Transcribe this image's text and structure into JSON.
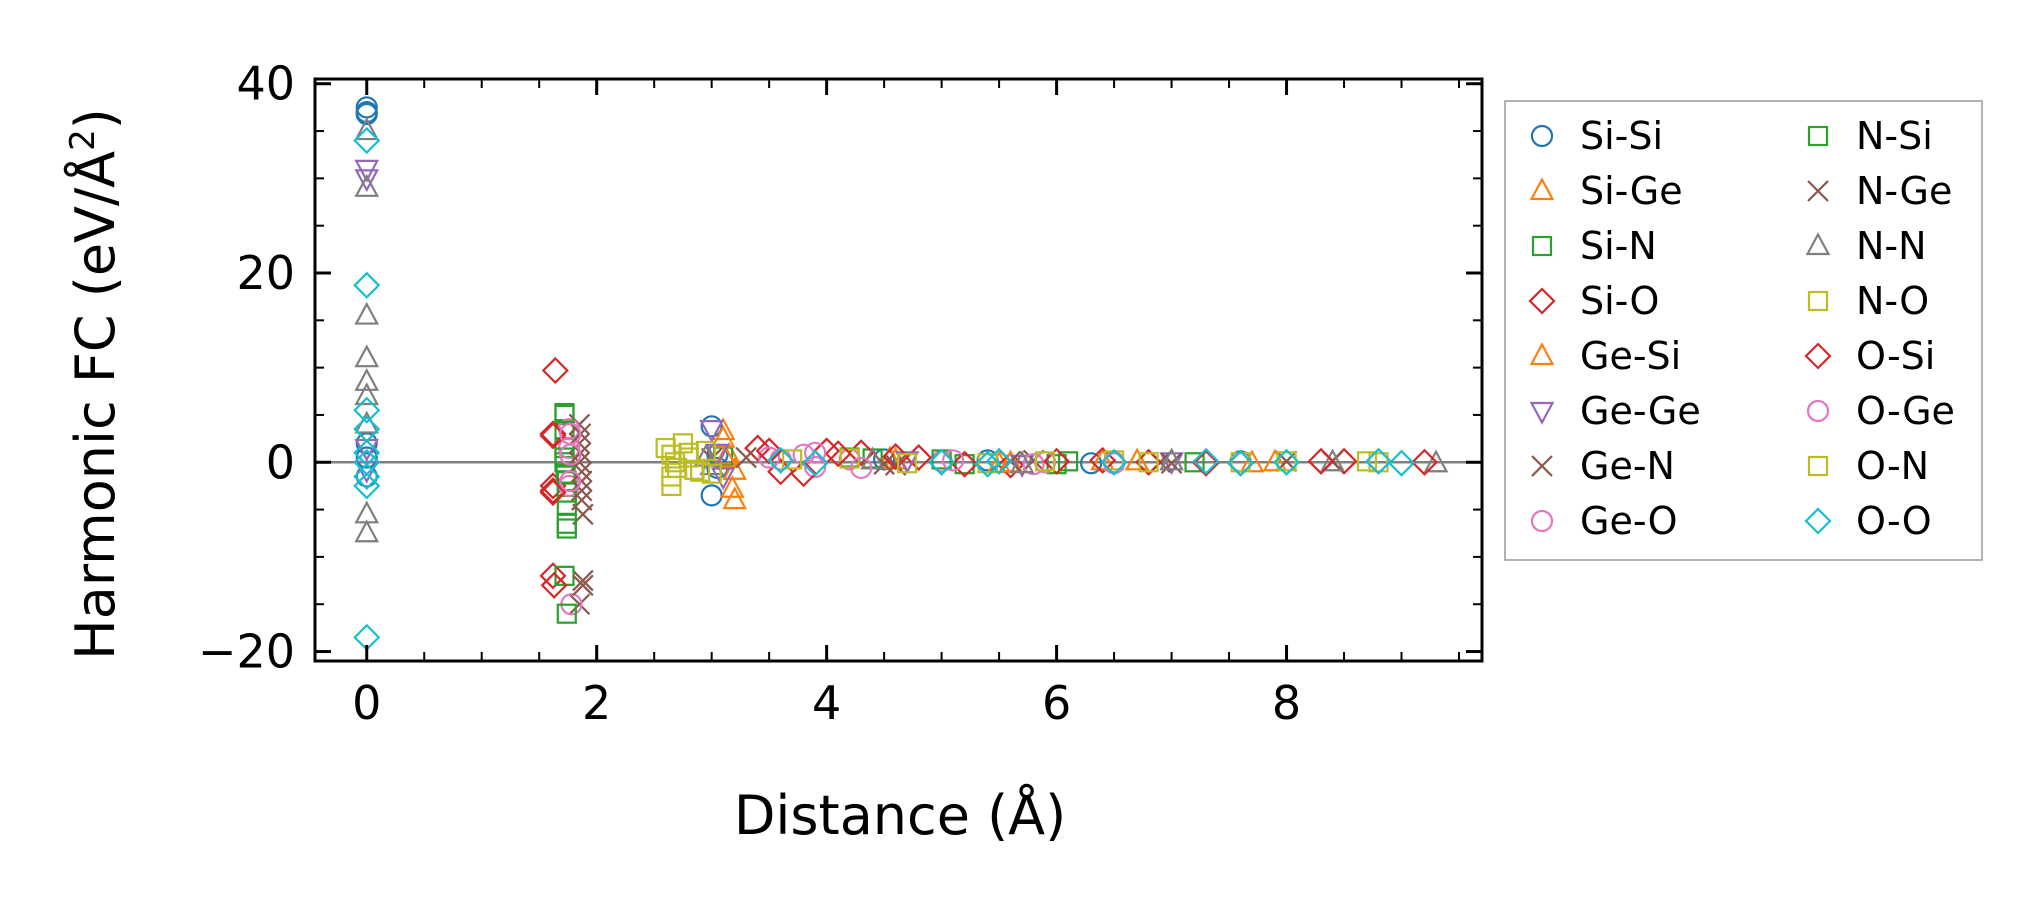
{
  "chart_data": {
    "type": "scatter",
    "title": "",
    "xlabel": "Distance (Å)",
    "ylabel_main": "Harmonic FC (eV/Å",
    "ylabel_sup": "2",
    "ylabel_close": ")",
    "xlim": [
      -0.45,
      9.7
    ],
    "ylim": [
      -21,
      40.5
    ],
    "x_ticks": [
      0,
      2,
      4,
      6,
      8
    ],
    "x_tick_labels": [
      "0",
      "2",
      "4",
      "6",
      "8"
    ],
    "y_ticks": [
      -20,
      0,
      20,
      40
    ],
    "y_tick_labels": [
      "−20",
      "0",
      "20",
      "40"
    ],
    "zero_line": true,
    "grid": false,
    "legend_placement": "outside right",
    "series": [
      {
        "name": "Si-Si",
        "marker": "circle",
        "color": "#1f77b4",
        "points": [
          [
            0,
            37.5
          ],
          [
            0,
            37.0
          ],
          [
            0,
            36.8
          ],
          [
            0,
            2.0
          ],
          [
            0,
            0.5
          ],
          [
            0,
            -1.5
          ],
          [
            3.0,
            3.8
          ],
          [
            3.0,
            -3.5
          ],
          [
            3.05,
            0.8
          ],
          [
            3.05,
            -0.6
          ],
          [
            4.5,
            0.3
          ],
          [
            5.4,
            0.2
          ],
          [
            6.3,
            -0.1
          ],
          [
            7.6,
            0.1
          ]
        ]
      },
      {
        "name": "Si-Ge",
        "marker": "triangle",
        "color": "#ff7f0e",
        "points": [
          [
            3.1,
            3.3
          ],
          [
            3.2,
            -4.0
          ],
          [
            3.15,
            0.7
          ],
          [
            3.2,
            -0.9
          ],
          [
            4.55,
            0.3
          ],
          [
            5.5,
            -0.2
          ],
          [
            6.4,
            0.1
          ],
          [
            7.7,
            -0.1
          ]
        ]
      },
      {
        "name": "Si-N",
        "marker": "square",
        "color": "#2ca02c",
        "points": [
          [
            1.72,
            5.0
          ],
          [
            1.72,
            3.5
          ],
          [
            1.72,
            1.5
          ],
          [
            1.72,
            0.0
          ],
          [
            1.74,
            -2.0
          ],
          [
            1.74,
            -4.5
          ],
          [
            1.74,
            -6.5
          ],
          [
            3.1,
            0.6
          ],
          [
            4.4,
            0.4
          ],
          [
            5.2,
            -0.2
          ],
          [
            6.1,
            0.1
          ],
          [
            7.2,
            0.0
          ]
        ]
      },
      {
        "name": "Si-O",
        "marker": "diamond",
        "color": "#d62728",
        "points": [
          [
            1.62,
            3.0
          ],
          [
            1.62,
            -2.5
          ],
          [
            1.62,
            -3.0
          ],
          [
            1.64,
            9.7
          ],
          [
            1.62,
            -12.0
          ],
          [
            3.4,
            1.5
          ],
          [
            3.6,
            -1.0
          ],
          [
            4.0,
            1.2
          ],
          [
            4.3,
            1.0
          ],
          [
            4.8,
            0.5
          ],
          [
            5.6,
            -0.3
          ],
          [
            6.4,
            0.2
          ],
          [
            7.3,
            -0.1
          ],
          [
            8.5,
            0.1
          ]
        ]
      },
      {
        "name": "Ge-Si",
        "marker": "triangle",
        "color": "#ff7f0e",
        "points": [
          [
            3.1,
            2.5
          ],
          [
            3.18,
            -2.8
          ],
          [
            3.12,
            0.4
          ],
          [
            4.6,
            0.2
          ],
          [
            5.6,
            -0.1
          ],
          [
            6.7,
            0.1
          ],
          [
            7.9,
            0.0
          ]
        ]
      },
      {
        "name": "Ge-Ge",
        "marker": "triangle-down",
        "color": "#9467bd",
        "points": [
          [
            0,
            31.0
          ],
          [
            0,
            30.0
          ],
          [
            0,
            1.5
          ],
          [
            0,
            -0.8
          ],
          [
            3.0,
            3.5
          ],
          [
            3.05,
            1.0
          ],
          [
            3.1,
            -1.5
          ],
          [
            4.7,
            0.2
          ],
          [
            5.7,
            -0.2
          ],
          [
            7.0,
            0.1
          ]
        ]
      },
      {
        "name": "Ge-N",
        "marker": "x",
        "color": "#8c564b",
        "points": [
          [
            1.85,
            4.0
          ],
          [
            1.85,
            2.0
          ],
          [
            1.85,
            0.0
          ],
          [
            1.87,
            -2.0
          ],
          [
            1.87,
            -4.0
          ],
          [
            1.88,
            -5.5
          ],
          [
            1.88,
            -12.5
          ],
          [
            1.85,
            -15.0
          ],
          [
            3.3,
            0.5
          ],
          [
            4.6,
            -0.3
          ],
          [
            5.8,
            0.2
          ],
          [
            7.0,
            -0.1
          ],
          [
            8.4,
            0.1
          ]
        ]
      },
      {
        "name": "Ge-O",
        "marker": "circle",
        "color": "#e377c2",
        "points": [
          [
            1.76,
            3.5
          ],
          [
            1.76,
            1.5
          ],
          [
            1.76,
            -2.5
          ],
          [
            1.78,
            -15.0
          ],
          [
            3.5,
            0.5
          ],
          [
            3.8,
            0.8
          ],
          [
            3.9,
            -0.5
          ],
          [
            4.2,
            0.3
          ],
          [
            5.0,
            0.1
          ],
          [
            5.8,
            -0.2
          ],
          [
            6.5,
            0.0
          ]
        ]
      },
      {
        "name": "N-Si",
        "marker": "square",
        "color": "#2ca02c",
        "points": [
          [
            1.72,
            5.2
          ],
          [
            1.72,
            0.5
          ],
          [
            1.73,
            -1.2
          ],
          [
            1.74,
            -3.2
          ],
          [
            1.74,
            -7.0
          ],
          [
            1.74,
            -16.0
          ],
          [
            1.72,
            -12.0
          ],
          [
            4.2,
            0.5
          ],
          [
            5.0,
            0.3
          ],
          [
            6.0,
            -0.2
          ]
        ]
      },
      {
        "name": "N-Ge",
        "marker": "x",
        "color": "#8c564b",
        "points": [
          [
            1.86,
            3.0
          ],
          [
            1.86,
            1.0
          ],
          [
            1.87,
            -1.0
          ],
          [
            1.87,
            -3.0
          ],
          [
            1.88,
            -13.0
          ],
          [
            3.0,
            0.4
          ],
          [
            4.5,
            -0.2
          ],
          [
            5.6,
            0.1
          ],
          [
            6.9,
            0.0
          ],
          [
            8.0,
            0.1
          ]
        ]
      },
      {
        "name": "N-N",
        "marker": "triangle",
        "color": "#7f7f7f",
        "points": [
          [
            0,
            35.0
          ],
          [
            0,
            29.0
          ],
          [
            0,
            15.5
          ],
          [
            0,
            11.0
          ],
          [
            0,
            8.5
          ],
          [
            0,
            7.0
          ],
          [
            0,
            4.0
          ],
          [
            0,
            -5.5
          ],
          [
            0,
            -7.5
          ],
          [
            2.95,
            0.5
          ],
          [
            3.0,
            -0.4
          ],
          [
            4.4,
            0.2
          ],
          [
            5.7,
            -0.2
          ],
          [
            7.0,
            0.1
          ],
          [
            8.4,
            0.0
          ],
          [
            9.3,
            -0.1
          ]
        ]
      },
      {
        "name": "N-O",
        "marker": "square",
        "color": "#bcbd22",
        "points": [
          [
            2.65,
            0.8
          ],
          [
            2.7,
            -0.6
          ],
          [
            2.8,
            1.0
          ],
          [
            2.9,
            -1.0
          ],
          [
            4.2,
            0.4
          ],
          [
            5.4,
            -0.1
          ],
          [
            6.5,
            0.2
          ],
          [
            7.6,
            0.0
          ],
          [
            8.7,
            0.1
          ]
        ]
      },
      {
        "name": "O-Si",
        "marker": "diamond",
        "color": "#d62728",
        "points": [
          [
            1.62,
            2.8
          ],
          [
            1.62,
            -3.2
          ],
          [
            1.63,
            -13.0
          ],
          [
            3.5,
            1.2
          ],
          [
            3.8,
            -1.2
          ],
          [
            4.1,
            0.9
          ],
          [
            4.6,
            0.6
          ],
          [
            5.2,
            -0.2
          ],
          [
            6.0,
            0.1
          ],
          [
            6.8,
            0.0
          ],
          [
            7.6,
            -0.1
          ],
          [
            8.3,
            0.1
          ],
          [
            9.2,
            0.0
          ]
        ]
      },
      {
        "name": "O-Ge",
        "marker": "circle",
        "color": "#e377c2",
        "points": [
          [
            1.77,
            3.0
          ],
          [
            1.77,
            0.8
          ],
          [
            1.77,
            -2.0
          ],
          [
            3.6,
            0.3
          ],
          [
            3.9,
            1.0
          ],
          [
            4.3,
            -0.6
          ],
          [
            5.1,
            0.2
          ],
          [
            5.9,
            0.0
          ],
          [
            6.5,
            -0.1
          ]
        ]
      },
      {
        "name": "O-N",
        "marker": "square",
        "color": "#bcbd22",
        "points": [
          [
            2.6,
            1.5
          ],
          [
            2.65,
            -1.5
          ],
          [
            2.65,
            -2.5
          ],
          [
            2.68,
            0.0
          ],
          [
            2.75,
            2.0
          ],
          [
            2.8,
            0.5
          ],
          [
            2.85,
            -0.8
          ],
          [
            2.95,
            1.2
          ],
          [
            3.0,
            -1.2
          ],
          [
            3.7,
            0.3
          ],
          [
            4.7,
            -0.1
          ],
          [
            5.9,
            0.1
          ],
          [
            6.8,
            0.0
          ],
          [
            8.0,
            0.1
          ],
          [
            8.8,
            0.0
          ]
        ]
      },
      {
        "name": "O-O",
        "marker": "diamond",
        "color": "#17becf",
        "points": [
          [
            0,
            34.0
          ],
          [
            0,
            18.7
          ],
          [
            0,
            5.5
          ],
          [
            0,
            3.5
          ],
          [
            0,
            1.0
          ],
          [
            0,
            0.0
          ],
          [
            0,
            -1.5
          ],
          [
            0,
            -2.5
          ],
          [
            0,
            -18.5
          ],
          [
            3.6,
            0.2
          ],
          [
            3.9,
            -0.1
          ],
          [
            5.0,
            0.0
          ],
          [
            5.4,
            -0.2
          ],
          [
            5.5,
            0.1
          ],
          [
            6.5,
            0.0
          ],
          [
            7.3,
            0.1
          ],
          [
            7.6,
            -0.1
          ],
          [
            8.0,
            0.0
          ],
          [
            8.8,
            0.1
          ],
          [
            9.0,
            -0.1
          ]
        ]
      }
    ]
  }
}
